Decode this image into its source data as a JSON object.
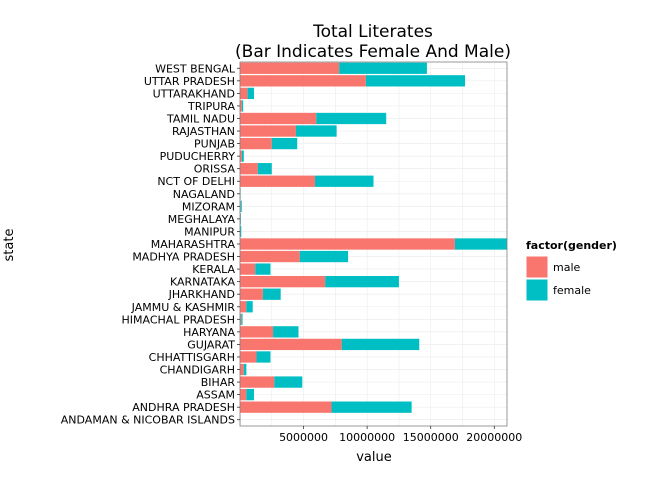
{
  "chart_data": {
    "type": "bar",
    "orientation": "horizontal",
    "stacked": true,
    "title": "Total Literates",
    "subtitle": "(Bar Indicates Female And Male)",
    "xlabel": "value",
    "ylabel": "state",
    "xlim": [
      0,
      21000000
    ],
    "x_ticks": [
      5000000,
      10000000,
      15000000,
      20000000
    ],
    "x_tick_labels": [
      "5000000",
      "10000000",
      "15000000",
      "20000000"
    ],
    "grid": true,
    "legend": {
      "title": "factor(gender)",
      "position": "right"
    },
    "categories": [
      "WEST BENGAL",
      "UTTAR PRADESH",
      "UTTARAKHAND",
      "TRIPURA",
      "TAMIL NADU",
      "RAJASTHAN",
      "PUNJAB",
      "PUDUCHERRY",
      "ORISSA",
      "NCT OF DELHI",
      "NAGALAND",
      "MIZORAM",
      "MEGHALAYA",
      "MANIPUR",
      "MAHARASHTRA",
      "MADHYA PRADESH",
      "KERALA",
      "KARNATAKA",
      "JHARKHAND",
      "JAMMU & KASHMIR",
      "HIMACHAL PRADESH",
      "HARYANA",
      "GUJARAT",
      "CHHATTISGARH",
      "CHANDIGARH",
      "BIHAR",
      "ASSAM",
      "ANDHRA PRADESH",
      "ANDAMAN & NICOBAR ISLANDS"
    ],
    "series": [
      {
        "name": "male",
        "color": "#F8766D",
        "values": [
          7800000,
          9900000,
          600000,
          150000,
          6000000,
          4400000,
          2500000,
          150000,
          1400000,
          5900000,
          30000,
          60000,
          50000,
          40000,
          16900000,
          4700000,
          1200000,
          6700000,
          1800000,
          500000,
          100000,
          2600000,
          8000000,
          1300000,
          300000,
          2700000,
          500000,
          7200000,
          20000
        ]
      },
      {
        "name": "female",
        "color": "#00BFC4",
        "values": [
          6900000,
          7800000,
          500000,
          100000,
          5500000,
          3200000,
          2000000,
          150000,
          1100000,
          4600000,
          20000,
          80000,
          30000,
          60000,
          4100000,
          3800000,
          1200000,
          5800000,
          1400000,
          500000,
          100000,
          2000000,
          6100000,
          1100000,
          200000,
          2200000,
          600000,
          6300000,
          20000
        ]
      }
    ]
  },
  "colors": {
    "panel_bg": "#FFFFFF",
    "grid": "#EBEBEB",
    "panel_border": "#7F7F7F"
  }
}
